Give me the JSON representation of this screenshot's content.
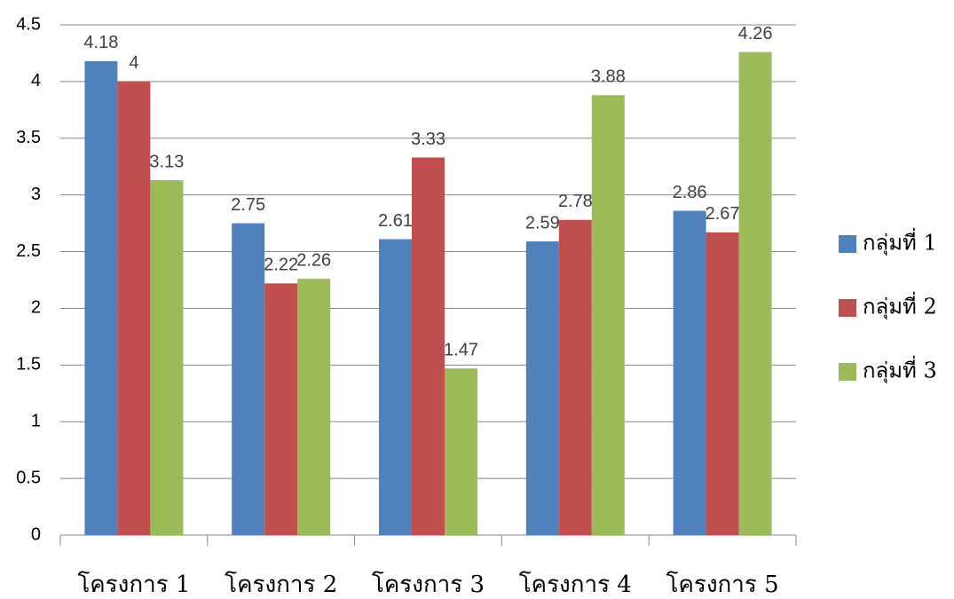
{
  "chart_data": {
    "type": "bar",
    "categories": [
      "โครงการ 1",
      "โครงการ 2",
      "โครงการ 3",
      "โครงการ 4",
      "โครงการ 5"
    ],
    "series": [
      {
        "name": "กลุ่มที่ 1",
        "color": "#4f81bd",
        "values": [
          4.18,
          2.75,
          2.61,
          2.59,
          2.86
        ]
      },
      {
        "name": "กลุ่มที่ 2",
        "color": "#c0504d",
        "values": [
          4,
          2.22,
          3.33,
          2.78,
          2.67
        ]
      },
      {
        "name": "กลุ่มที่ 3",
        "color": "#9bbb59",
        "values": [
          3.13,
          2.26,
          1.47,
          3.88,
          4.26
        ]
      }
    ],
    "ylim": [
      0,
      4.5
    ],
    "yticks": [
      0,
      0.5,
      1,
      1.5,
      2,
      2.5,
      3,
      3.5,
      4,
      4.5
    ],
    "grid": true,
    "legend": "right"
  }
}
